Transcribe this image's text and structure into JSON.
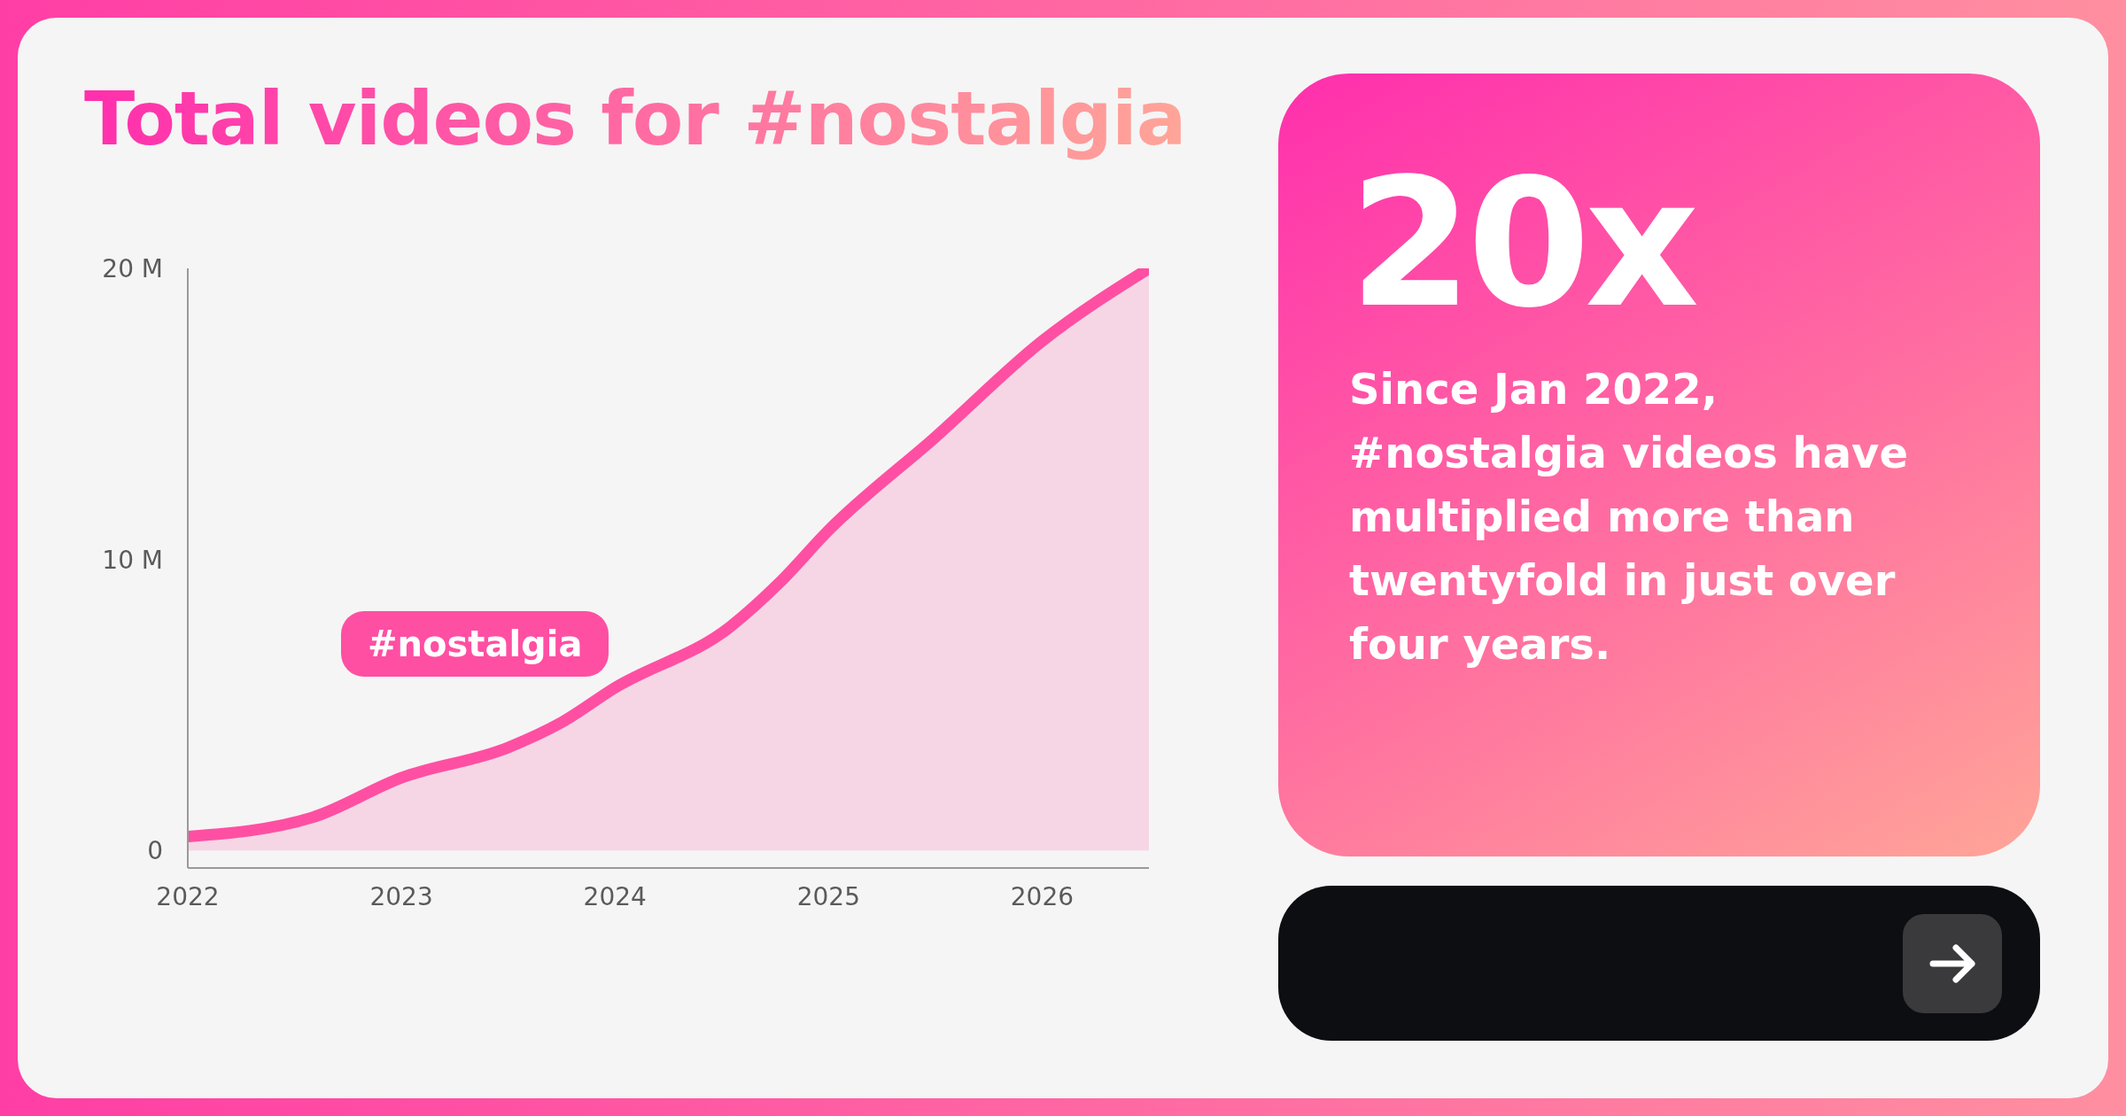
{
  "chart_data": {
    "type": "area",
    "title": "Total videos for #nostalgia",
    "annotations": [
      "20x",
      "Since Jan 2022, #nostalgia videos have multiplied more than twentyfold in just over four years."
    ],
    "x": [
      2022,
      2022.58,
      2023,
      2023.5,
      2023.75,
      2024,
      2024.54,
      2024.77,
      2025,
      2025.5,
      2026,
      2026.5
    ],
    "series": [
      {
        "name": "#nostalgia",
        "color": "#ff4fa3",
        "values": [
          0.48,
          1.13,
          2.5,
          3.54,
          4.4,
          5.59,
          7.69,
          9.2,
          11.0,
          14.2,
          17.5,
          20.0
        ]
      }
    ],
    "xlim": [
      2022,
      2026.5
    ],
    "xticks": [
      2022,
      2023,
      2024,
      2025,
      2026
    ],
    "ylim": [
      -0.6,
      20
    ],
    "yticks": [
      0,
      {
        "value": 10,
        "label": "10 M"
      },
      {
        "value": 20,
        "label": "20 M"
      }
    ]
  }
}
